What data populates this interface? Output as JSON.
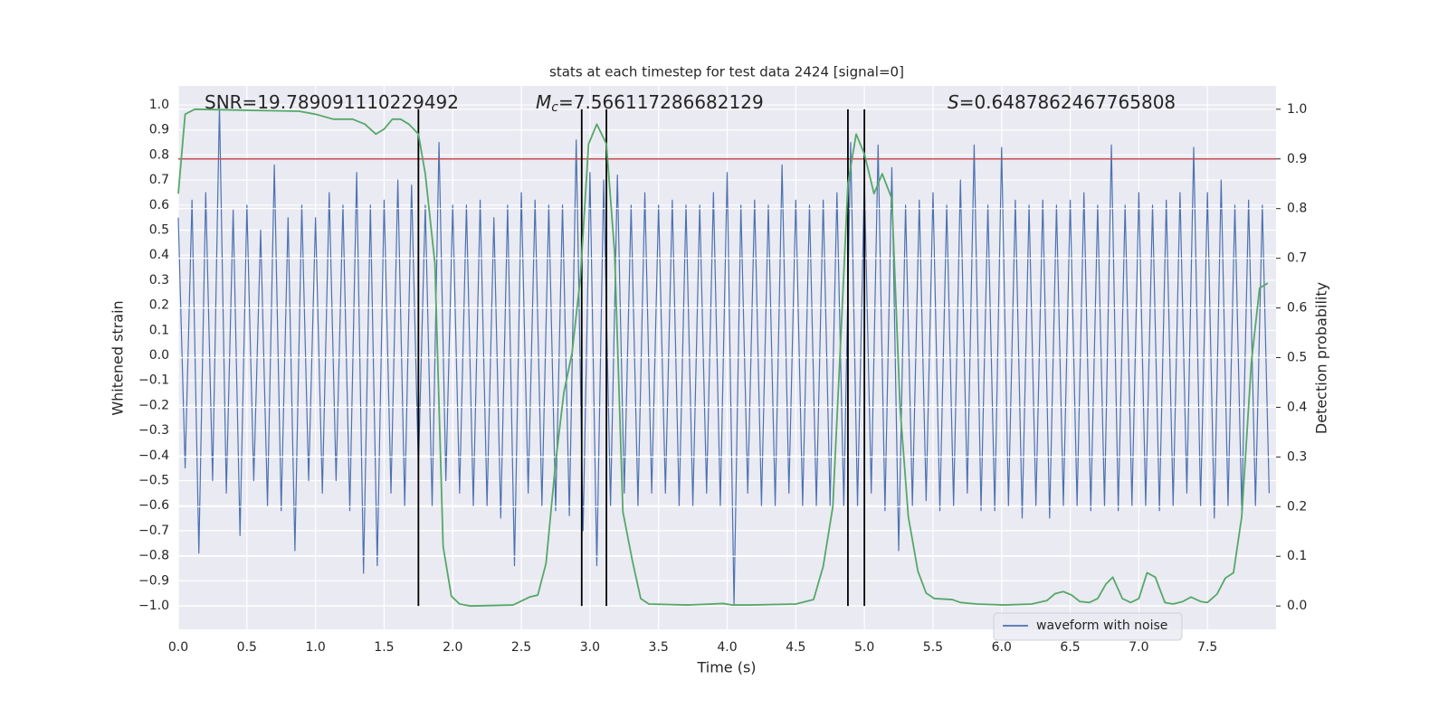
{
  "chart_data": {
    "type": "line",
    "title": "stats at each timestep for test data 2424 [signal=0]",
    "xlabel": "Time (s)",
    "ylabel": "Whitened strain",
    "y2label": "Detection probability",
    "xlim": [
      0,
      8
    ],
    "ylim": [
      -1.094,
      1.076
    ],
    "y2lim": [
      -0.047,
      1.047
    ],
    "xticks": [
      {
        "value": 0,
        "label": "0.0"
      },
      {
        "value": 0.5,
        "label": "0.5"
      },
      {
        "value": 1,
        "label": "1.0"
      },
      {
        "value": 1.5,
        "label": "1.5"
      },
      {
        "value": 2,
        "label": "2.0"
      },
      {
        "value": 2.5,
        "label": "2.5"
      },
      {
        "value": 3,
        "label": "3.0"
      },
      {
        "value": 3.5,
        "label": "3.5"
      },
      {
        "value": 4,
        "label": "4.0"
      },
      {
        "value": 4.5,
        "label": "4.5"
      },
      {
        "value": 5,
        "label": "5.0"
      },
      {
        "value": 5.5,
        "label": "5.5"
      },
      {
        "value": 6,
        "label": "6.0"
      },
      {
        "value": 6.5,
        "label": "6.5"
      },
      {
        "value": 7,
        "label": "7.0"
      },
      {
        "value": 7.5,
        "label": "7.5"
      }
    ],
    "yticks": [
      {
        "value": -1,
        "label": "−1.0"
      },
      {
        "value": -0.9,
        "label": "−0.9"
      },
      {
        "value": -0.8,
        "label": "−0.8"
      },
      {
        "value": -0.7,
        "label": "−0.7"
      },
      {
        "value": -0.6,
        "label": "−0.6"
      },
      {
        "value": -0.5,
        "label": "−0.5"
      },
      {
        "value": -0.4,
        "label": "−0.4"
      },
      {
        "value": -0.3,
        "label": "−0.3"
      },
      {
        "value": -0.2,
        "label": "−0.2"
      },
      {
        "value": -0.1,
        "label": "−0.1"
      },
      {
        "value": 0,
        "label": "0.0"
      },
      {
        "value": 0.1,
        "label": "0.1"
      },
      {
        "value": 0.2,
        "label": "0.2"
      },
      {
        "value": 0.3,
        "label": "0.3"
      },
      {
        "value": 0.4,
        "label": "0.4"
      },
      {
        "value": 0.5,
        "label": "0.5"
      },
      {
        "value": 0.6,
        "label": "0.6"
      },
      {
        "value": 0.7,
        "label": "0.7"
      },
      {
        "value": 0.8,
        "label": "0.8"
      },
      {
        "value": 0.9,
        "label": "0.9"
      },
      {
        "value": 1,
        "label": "1.0"
      }
    ],
    "y2ticks": [
      {
        "value": 0,
        "label": "0.0"
      },
      {
        "value": 0.1,
        "label": "0.1"
      },
      {
        "value": 0.2,
        "label": "0.2"
      },
      {
        "value": 0.3,
        "label": "0.3"
      },
      {
        "value": 0.4,
        "label": "0.4"
      },
      {
        "value": 0.5,
        "label": "0.5"
      },
      {
        "value": 0.6,
        "label": "0.6"
      },
      {
        "value": 0.7,
        "label": "0.7"
      },
      {
        "value": 0.8,
        "label": "0.8"
      },
      {
        "value": 0.9,
        "label": "0.9"
      },
      {
        "value": 1,
        "label": "1.0"
      }
    ],
    "grid": true,
    "legend": "lower right",
    "series": [
      {
        "name": "waveform with noise",
        "color": "#4c72b0",
        "x": [
          0,
          0.05,
          0.1,
          0.15,
          0.2,
          0.25,
          0.3,
          0.35,
          0.4,
          0.45,
          0.5,
          0.55,
          0.6,
          0.65,
          0.7,
          0.75,
          0.8,
          0.85,
          0.9,
          0.95,
          1,
          1.05,
          1.1,
          1.15,
          1.2,
          1.25,
          1.3,
          1.35,
          1.4,
          1.45,
          1.5,
          1.55,
          1.6,
          1.65,
          1.7,
          1.75,
          1.8,
          1.85,
          1.9,
          1.95,
          2,
          2.05,
          2.1,
          2.15,
          2.2,
          2.25,
          2.3,
          2.35,
          2.4,
          2.45,
          2.5,
          2.55,
          2.6,
          2.65,
          2.7,
          2.75,
          2.8,
          2.85,
          2.9,
          2.95,
          3,
          3.05,
          3.1,
          3.15,
          3.2,
          3.25,
          3.3,
          3.35,
          3.4,
          3.45,
          3.5,
          3.55,
          3.6,
          3.65,
          3.7,
          3.75,
          3.8,
          3.85,
          3.9,
          3.95,
          4,
          4.05,
          4.1,
          4.15,
          4.2,
          4.25,
          4.3,
          4.35,
          4.4,
          4.45,
          4.5,
          4.55,
          4.6,
          4.65,
          4.7,
          4.75,
          4.8,
          4.85,
          4.9,
          4.95,
          5,
          5.05,
          5.1,
          5.15,
          5.2,
          5.25,
          5.3,
          5.35,
          5.4,
          5.45,
          5.5,
          5.55,
          5.6,
          5.65,
          5.7,
          5.75,
          5.8,
          5.85,
          5.9,
          5.95,
          6,
          6.05,
          6.1,
          6.15,
          6.2,
          6.25,
          6.3,
          6.35,
          6.4,
          6.45,
          6.5,
          6.55,
          6.6,
          6.65,
          6.7,
          6.75,
          6.8,
          6.85,
          6.9,
          6.95,
          7,
          7.05,
          7.1,
          7.15,
          7.2,
          7.25,
          7.3,
          7.35,
          7.4,
          7.45,
          7.5,
          7.55,
          7.6,
          7.65,
          7.7,
          7.75,
          7.8,
          7.85,
          7.9,
          7.95
        ],
        "values": [
          0.55,
          -0.45,
          0.62,
          -0.79,
          0.65,
          -0.5,
          1.0,
          -0.55,
          0.58,
          -0.72,
          0.6,
          -0.5,
          0.5,
          -0.6,
          0.76,
          -0.62,
          0.55,
          -0.78,
          0.6,
          -0.5,
          0.55,
          -0.55,
          0.65,
          -0.5,
          0.6,
          -0.62,
          0.73,
          -0.87,
          0.6,
          -0.84,
          0.62,
          -0.55,
          0.7,
          -0.6,
          0.68,
          -0.45,
          0.6,
          -0.6,
          0.85,
          -0.5,
          0.6,
          -0.55,
          0.6,
          -0.6,
          0.62,
          -0.6,
          0.55,
          -0.65,
          0.6,
          -0.84,
          0.65,
          -0.55,
          0.62,
          -0.6,
          0.6,
          -0.62,
          0.6,
          -0.64,
          0.86,
          -0.7,
          0.73,
          -0.84,
          0.7,
          -0.6,
          0.72,
          -0.55,
          0.6,
          -0.6,
          0.65,
          -0.55,
          0.6,
          -0.55,
          0.62,
          -0.6,
          0.6,
          -0.6,
          0.6,
          -0.55,
          0.65,
          -0.6,
          0.73,
          -1.0,
          0.6,
          -0.55,
          0.62,
          -0.6,
          0.6,
          -0.6,
          0.76,
          -0.55,
          0.62,
          -0.6,
          0.6,
          -0.6,
          0.62,
          -0.6,
          0.65,
          -0.6,
          0.85,
          -0.6,
          0.7,
          -0.55,
          0.84,
          -0.62,
          0.75,
          -0.78,
          0.6,
          -0.6,
          0.62,
          -0.58,
          0.65,
          -0.62,
          0.6,
          -0.6,
          0.7,
          -0.55,
          0.84,
          -0.62,
          0.6,
          -0.62,
          0.83,
          -0.6,
          0.62,
          -0.65,
          0.6,
          -0.6,
          0.62,
          -0.65,
          0.6,
          -0.6,
          0.62,
          -0.6,
          0.65,
          -0.62,
          0.6,
          -0.6,
          0.84,
          -0.62,
          0.6,
          -0.6,
          0.65,
          -0.6,
          0.6,
          -0.62,
          0.62,
          -0.6,
          0.65,
          -0.55,
          0.83,
          -0.6,
          0.65,
          -0.65,
          0.7,
          -0.6,
          0.6,
          -0.62,
          0.62,
          -0.6,
          0.6,
          -0.55
        ]
      },
      {
        "color": "#55a868",
        "axis": "y2",
        "x": [
          0,
          0.05,
          0.12,
          0.88,
          1.0,
          1.13,
          1.27,
          1.36,
          1.44,
          1.5,
          1.56,
          1.62,
          1.68,
          1.75,
          1.8,
          1.87,
          1.93,
          1.99,
          2.05,
          2.13,
          2.44,
          2.56,
          2.62,
          2.68,
          2.75,
          2.81,
          2.87,
          2.93,
          2.99,
          3.05,
          3.12,
          3.18,
          3.24,
          3.31,
          3.37,
          3.43,
          3.71,
          3.97,
          4.04,
          4.17,
          4.5,
          4.63,
          4.7,
          4.77,
          4.83,
          4.88,
          4.94,
          5.0,
          5.07,
          5.13,
          5.2,
          5.26,
          5.32,
          5.39,
          5.45,
          5.51,
          5.64,
          5.7,
          5.82,
          6.02,
          6.22,
          6.33,
          6.39,
          6.45,
          6.51,
          6.57,
          6.64,
          6.7,
          6.76,
          6.81,
          6.88,
          6.94,
          7.0,
          7.06,
          7.12,
          7.19,
          7.25,
          7.32,
          7.38,
          7.45,
          7.5,
          7.57,
          7.63,
          7.69,
          7.75,
          7.82,
          7.88,
          7.94
        ],
        "values": [
          0.83,
          0.99,
          1.0,
          0.996,
          0.99,
          0.98,
          0.98,
          0.97,
          0.95,
          0.96,
          0.98,
          0.98,
          0.97,
          0.95,
          0.87,
          0.69,
          0.12,
          0.02,
          0.004,
          0.0,
          0.002,
          0.018,
          0.022,
          0.086,
          0.29,
          0.43,
          0.51,
          0.66,
          0.93,
          0.97,
          0.93,
          0.71,
          0.19,
          0.09,
          0.015,
          0.004,
          0.002,
          0.005,
          0.002,
          0.002,
          0.004,
          0.013,
          0.08,
          0.2,
          0.55,
          0.85,
          0.95,
          0.91,
          0.83,
          0.87,
          0.82,
          0.4,
          0.18,
          0.07,
          0.026,
          0.015,
          0.013,
          0.007,
          0.004,
          0.002,
          0.004,
          0.011,
          0.025,
          0.029,
          0.022,
          0.009,
          0.007,
          0.015,
          0.044,
          0.058,
          0.015,
          0.007,
          0.015,
          0.067,
          0.058,
          0.007,
          0.004,
          0.009,
          0.018,
          0.009,
          0.007,
          0.024,
          0.056,
          0.067,
          0.18,
          0.49,
          0.64,
          0.65
        ]
      }
    ],
    "hline": {
      "value": 0.9,
      "axis": "y2",
      "color": "#c44e52"
    },
    "vlines": {
      "x": [
        1.75,
        2.94,
        3.12,
        4.88,
        5.0
      ],
      "ymin": 0,
      "ymax": 1,
      "axis": "y2",
      "color": "#000000"
    },
    "annotations": [
      {
        "text": "SNR=19.789091110229492"
      },
      {
        "symbol": "M",
        "sub": "c",
        "text": "=7.566117286682129"
      },
      {
        "symbol": "S",
        "text": "=0.6487862467765808"
      }
    ]
  }
}
